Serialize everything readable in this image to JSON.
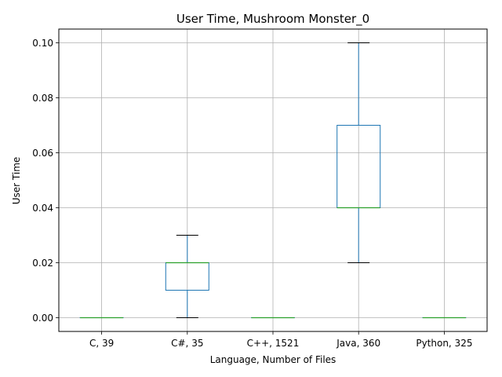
{
  "chart_data": {
    "type": "box",
    "title": "User Time, Mushroom Monster_0",
    "xlabel": "Language, Number of Files",
    "ylabel": "User Time",
    "ylim": [
      -0.005,
      0.105
    ],
    "yticks": [
      0.0,
      0.02,
      0.04,
      0.06,
      0.08,
      0.1
    ],
    "ytick_labels": [
      "0.00",
      "0.02",
      "0.04",
      "0.06",
      "0.08",
      "0.10"
    ],
    "grid": true,
    "categories": [
      "C, 39",
      "C#, 35",
      "C++, 1521",
      "Java, 360",
      "Python, 325"
    ],
    "boxes": [
      {
        "whisker_low": 0.0,
        "q1": 0.0,
        "median": 0.0,
        "q3": 0.0,
        "whisker_high": 0.0
      },
      {
        "whisker_low": 0.0,
        "q1": 0.01,
        "median": 0.02,
        "q3": 0.02,
        "whisker_high": 0.03
      },
      {
        "whisker_low": 0.0,
        "q1": 0.0,
        "median": 0.0,
        "q3": 0.0,
        "whisker_high": 0.0
      },
      {
        "whisker_low": 0.02,
        "q1": 0.04,
        "median": 0.04,
        "q3": 0.07,
        "whisker_high": 0.1
      },
      {
        "whisker_low": 0.0,
        "q1": 0.0,
        "median": 0.0,
        "q3": 0.0,
        "whisker_high": 0.0
      }
    ],
    "colors": {
      "box": "#1f77b4",
      "median": "#2ca02c",
      "cap": "#000000",
      "grid": "#b0b0b0",
      "axis": "#000000"
    }
  }
}
